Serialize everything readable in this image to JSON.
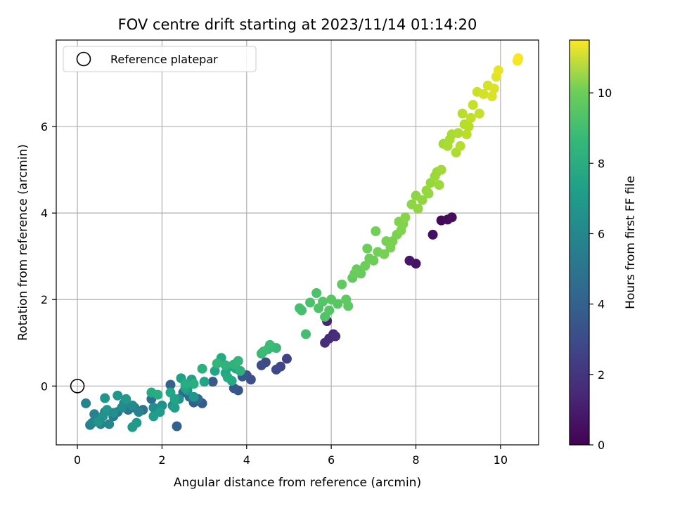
{
  "chart_data": {
    "type": "scatter",
    "title": "FOV centre drift starting at 2023/11/14 01:14:20",
    "xlabel": "Angular distance from reference (arcmin)",
    "ylabel": "Rotation from reference (arcmin)",
    "colorbar_label": "Hours from first FF file",
    "xlim": [
      -0.5,
      10.9
    ],
    "ylim": [
      -1.36,
      8.0
    ],
    "clim": [
      0,
      11.5
    ],
    "xticks": [
      "0",
      "2",
      "4",
      "6",
      "8",
      "10"
    ],
    "yticks": [
      "0",
      "2",
      "4",
      "6"
    ],
    "cticks": [
      "0",
      "2",
      "4",
      "6",
      "8",
      "10"
    ],
    "grid": true,
    "legend": {
      "placement": "top-left",
      "entries": [
        "Reference platepar"
      ]
    },
    "colormap": "viridis",
    "reference_point": {
      "x": 0,
      "y": 0
    },
    "points": [
      {
        "x": 8.6,
        "y": 3.83,
        "t": 0.2
      },
      {
        "x": 8.75,
        "y": 3.85,
        "t": 0.3
      },
      {
        "x": 8.85,
        "y": 3.9,
        "t": 0.4
      },
      {
        "x": 8.4,
        "y": 3.5,
        "t": 0.5
      },
      {
        "x": 8.0,
        "y": 2.83,
        "t": 0.6
      },
      {
        "x": 7.85,
        "y": 2.9,
        "t": 0.7
      },
      {
        "x": 5.9,
        "y": 1.5,
        "t": 1.2
      },
      {
        "x": 6.05,
        "y": 1.2,
        "t": 1.3
      },
      {
        "x": 5.95,
        "y": 1.1,
        "t": 1.4
      },
      {
        "x": 5.85,
        "y": 1.0,
        "t": 1.5
      },
      {
        "x": 6.1,
        "y": 1.15,
        "t": 1.5
      },
      {
        "x": 4.95,
        "y": 0.63,
        "t": 2.2
      },
      {
        "x": 4.8,
        "y": 0.45,
        "t": 2.4
      },
      {
        "x": 4.7,
        "y": 0.38,
        "t": 2.5
      },
      {
        "x": 4.45,
        "y": 0.55,
        "t": 2.6
      },
      {
        "x": 4.35,
        "y": 0.48,
        "t": 2.7
      },
      {
        "x": 4.1,
        "y": 0.15,
        "t": 2.8
      },
      {
        "x": 4.0,
        "y": 0.25,
        "t": 2.9
      },
      {
        "x": 3.8,
        "y": -0.1,
        "t": 3.0
      },
      {
        "x": 3.7,
        "y": -0.05,
        "t": 3.1
      },
      {
        "x": 3.9,
        "y": 0.22,
        "t": 3.1
      },
      {
        "x": 3.2,
        "y": 0.1,
        "t": 3.2
      },
      {
        "x": 2.95,
        "y": -0.4,
        "t": 3.3
      },
      {
        "x": 2.75,
        "y": -0.38,
        "t": 3.4
      },
      {
        "x": 2.35,
        "y": -0.93,
        "t": 3.5
      },
      {
        "x": 2.2,
        "y": 0.03,
        "t": 3.6
      },
      {
        "x": 2.5,
        "y": -0.15,
        "t": 3.8
      },
      {
        "x": 2.65,
        "y": -0.25,
        "t": 4.0
      },
      {
        "x": 2.85,
        "y": -0.3,
        "t": 4.1
      },
      {
        "x": 1.75,
        "y": -0.3,
        "t": 4.2
      },
      {
        "x": 1.55,
        "y": -0.55,
        "t": 4.3
      },
      {
        "x": 1.35,
        "y": -0.5,
        "t": 4.4
      },
      {
        "x": 1.2,
        "y": -0.55,
        "t": 4.5
      },
      {
        "x": 0.95,
        "y": -0.6,
        "t": 4.6
      },
      {
        "x": 0.85,
        "y": -0.7,
        "t": 4.7
      },
      {
        "x": 0.65,
        "y": -0.6,
        "t": 4.8
      },
      {
        "x": 0.45,
        "y": -0.78,
        "t": 4.8
      },
      {
        "x": 0.3,
        "y": -0.9,
        "t": 4.9
      },
      {
        "x": 0.4,
        "y": -0.65,
        "t": 5.0
      },
      {
        "x": 0.55,
        "y": -0.88,
        "t": 5.0
      },
      {
        "x": 0.2,
        "y": -0.4,
        "t": 5.1
      },
      {
        "x": 0.35,
        "y": -0.85,
        "t": 5.2
      },
      {
        "x": 0.75,
        "y": -0.88,
        "t": 5.3
      },
      {
        "x": 1.1,
        "y": -0.4,
        "t": 5.4
      },
      {
        "x": 1.3,
        "y": -0.45,
        "t": 5.5
      },
      {
        "x": 1.05,
        "y": -0.5,
        "t": 5.5
      },
      {
        "x": 1.8,
        "y": -0.5,
        "t": 5.6
      },
      {
        "x": 2.0,
        "y": -0.45,
        "t": 5.7
      },
      {
        "x": 2.25,
        "y": -0.45,
        "t": 5.7
      },
      {
        "x": 2.4,
        "y": -0.3,
        "t": 5.8
      },
      {
        "x": 2.6,
        "y": -0.1,
        "t": 5.9
      },
      {
        "x": 2.75,
        "y": -0.25,
        "t": 5.9
      },
      {
        "x": 0.65,
        "y": -0.28,
        "t": 6.0
      },
      {
        "x": 0.95,
        "y": -0.22,
        "t": 6.0
      },
      {
        "x": 1.15,
        "y": -0.3,
        "t": 6.1
      },
      {
        "x": 0.7,
        "y": -0.55,
        "t": 6.1
      },
      {
        "x": 1.4,
        "y": -0.85,
        "t": 6.2
      },
      {
        "x": 1.3,
        "y": -0.95,
        "t": 6.2
      },
      {
        "x": 1.8,
        "y": -0.7,
        "t": 6.3
      },
      {
        "x": 1.95,
        "y": -0.6,
        "t": 6.3
      },
      {
        "x": 2.3,
        "y": -0.5,
        "t": 6.4
      },
      {
        "x": 2.45,
        "y": 0.18,
        "t": 6.5
      },
      {
        "x": 2.7,
        "y": 0.15,
        "t": 6.5
      },
      {
        "x": 2.55,
        "y": -0.05,
        "t": 6.6
      },
      {
        "x": 3.0,
        "y": 0.1,
        "t": 6.7
      },
      {
        "x": 3.25,
        "y": 0.35,
        "t": 6.8
      },
      {
        "x": 3.5,
        "y": 0.3,
        "t": 6.8
      },
      {
        "x": 3.6,
        "y": 0.45,
        "t": 6.9
      },
      {
        "x": 3.75,
        "y": 0.4,
        "t": 6.9
      },
      {
        "x": 3.4,
        "y": 0.65,
        "t": 7.0
      },
      {
        "x": 3.55,
        "y": 0.2,
        "t": 7.0
      },
      {
        "x": 1.75,
        "y": -0.15,
        "t": 7.0
      },
      {
        "x": 1.9,
        "y": -0.2,
        "t": 7.1
      },
      {
        "x": 2.55,
        "y": 0.05,
        "t": 7.1
      },
      {
        "x": 2.75,
        "y": 0.05,
        "t": 7.2
      },
      {
        "x": 2.95,
        "y": 0.4,
        "t": 7.3
      },
      {
        "x": 3.85,
        "y": 0.35,
        "t": 7.3
      },
      {
        "x": 3.7,
        "y": 0.5,
        "t": 7.4
      },
      {
        "x": 3.8,
        "y": 0.58,
        "t": 7.5
      },
      {
        "x": 4.35,
        "y": 0.75,
        "t": 7.6
      },
      {
        "x": 4.5,
        "y": 0.85,
        "t": 7.6
      },
      {
        "x": 4.6,
        "y": 0.9,
        "t": 7.7
      },
      {
        "x": 4.7,
        "y": 0.88,
        "t": 7.7
      },
      {
        "x": 4.55,
        "y": 0.95,
        "t": 7.8
      },
      {
        "x": 4.4,
        "y": 0.8,
        "t": 7.8
      },
      {
        "x": 5.4,
        "y": 1.2,
        "t": 8.0
      },
      {
        "x": 5.25,
        "y": 1.8,
        "t": 8.1
      },
      {
        "x": 5.3,
        "y": 1.75,
        "t": 8.1
      },
      {
        "x": 5.5,
        "y": 1.93,
        "t": 8.2
      },
      {
        "x": 5.65,
        "y": 2.15,
        "t": 8.2
      },
      {
        "x": 5.7,
        "y": 1.8,
        "t": 8.3
      },
      {
        "x": 5.85,
        "y": 1.6,
        "t": 8.3
      },
      {
        "x": 5.8,
        "y": 1.95,
        "t": 8.4
      },
      {
        "x": 5.95,
        "y": 1.75,
        "t": 8.4
      },
      {
        "x": 6.0,
        "y": 2.0,
        "t": 8.5
      },
      {
        "x": 6.15,
        "y": 1.9,
        "t": 8.5
      },
      {
        "x": 6.35,
        "y": 2.0,
        "t": 8.6
      },
      {
        "x": 6.4,
        "y": 1.85,
        "t": 8.6
      },
      {
        "x": 6.25,
        "y": 2.35,
        "t": 8.7
      },
      {
        "x": 6.5,
        "y": 2.5,
        "t": 8.7
      },
      {
        "x": 6.6,
        "y": 2.7,
        "t": 8.8
      },
      {
        "x": 6.7,
        "y": 2.6,
        "t": 8.8
      },
      {
        "x": 6.85,
        "y": 3.18,
        "t": 8.9
      },
      {
        "x": 6.9,
        "y": 2.95,
        "t": 8.9
      },
      {
        "x": 7.05,
        "y": 3.58,
        "t": 9.0
      },
      {
        "x": 7.1,
        "y": 3.1,
        "t": 9.0
      },
      {
        "x": 7.25,
        "y": 3.05,
        "t": 9.1
      },
      {
        "x": 7.3,
        "y": 3.35,
        "t": 9.1
      },
      {
        "x": 7.45,
        "y": 3.35,
        "t": 9.2
      },
      {
        "x": 7.55,
        "y": 3.5,
        "t": 9.2
      },
      {
        "x": 7.6,
        "y": 3.8,
        "t": 9.3
      },
      {
        "x": 7.7,
        "y": 3.75,
        "t": 9.3
      },
      {
        "x": 7.75,
        "y": 3.9,
        "t": 9.4
      },
      {
        "x": 7.9,
        "y": 4.2,
        "t": 9.5
      },
      {
        "x": 8.0,
        "y": 4.4,
        "t": 9.5
      },
      {
        "x": 8.05,
        "y": 4.1,
        "t": 9.6
      },
      {
        "x": 8.15,
        "y": 4.3,
        "t": 9.6
      },
      {
        "x": 8.25,
        "y": 4.52,
        "t": 9.7
      },
      {
        "x": 8.35,
        "y": 4.7,
        "t": 9.7
      },
      {
        "x": 8.5,
        "y": 4.95,
        "t": 9.8
      },
      {
        "x": 8.55,
        "y": 4.65,
        "t": 9.8
      },
      {
        "x": 8.6,
        "y": 5.0,
        "t": 9.9
      },
      {
        "x": 8.65,
        "y": 5.6,
        "t": 9.9
      },
      {
        "x": 8.75,
        "y": 5.55,
        "t": 10.0
      },
      {
        "x": 8.85,
        "y": 5.82,
        "t": 10.0
      },
      {
        "x": 8.95,
        "y": 5.4,
        "t": 10.1
      },
      {
        "x": 9.0,
        "y": 5.85,
        "t": 10.1
      },
      {
        "x": 9.05,
        "y": 5.55,
        "t": 10.2
      },
      {
        "x": 9.15,
        "y": 6.05,
        "t": 10.2
      },
      {
        "x": 9.1,
        "y": 6.3,
        "t": 10.3
      },
      {
        "x": 9.2,
        "y": 5.82,
        "t": 10.3
      },
      {
        "x": 9.3,
        "y": 6.2,
        "t": 10.4
      },
      {
        "x": 9.35,
        "y": 6.5,
        "t": 10.5
      },
      {
        "x": 9.45,
        "y": 6.8,
        "t": 10.6
      },
      {
        "x": 9.6,
        "y": 6.75,
        "t": 10.7
      },
      {
        "x": 9.7,
        "y": 6.95,
        "t": 10.8
      },
      {
        "x": 9.85,
        "y": 6.88,
        "t": 10.9
      },
      {
        "x": 9.9,
        "y": 7.15,
        "t": 11.0
      },
      {
        "x": 9.95,
        "y": 7.3,
        "t": 11.1
      },
      {
        "x": 10.4,
        "y": 7.52,
        "t": 11.3
      },
      {
        "x": 10.42,
        "y": 7.58,
        "t": 11.4
      },
      {
        "x": 3.3,
        "y": 0.52,
        "t": 7.5
      },
      {
        "x": 3.5,
        "y": 0.48,
        "t": 7.4
      },
      {
        "x": 3.65,
        "y": 0.12,
        "t": 7.0
      },
      {
        "x": 2.2,
        "y": -0.15,
        "t": 6.8
      },
      {
        "x": 2.3,
        "y": -0.3,
        "t": 6.6
      },
      {
        "x": 0.5,
        "y": -0.82,
        "t": 5.9
      },
      {
        "x": 0.6,
        "y": -0.7,
        "t": 5.8
      },
      {
        "x": 0.85,
        "y": -0.62,
        "t": 5.7
      },
      {
        "x": 1.45,
        "y": -0.6,
        "t": 5.0
      },
      {
        "x": 6.55,
        "y": 2.6,
        "t": 8.85
      },
      {
        "x": 6.8,
        "y": 2.78,
        "t": 8.9
      },
      {
        "x": 7.0,
        "y": 2.9,
        "t": 8.95
      },
      {
        "x": 7.4,
        "y": 3.2,
        "t": 9.15
      },
      {
        "x": 7.65,
        "y": 3.6,
        "t": 9.3
      },
      {
        "x": 8.3,
        "y": 4.45,
        "t": 9.65
      },
      {
        "x": 8.45,
        "y": 4.85,
        "t": 9.78
      },
      {
        "x": 8.8,
        "y": 5.7,
        "t": 10.0
      },
      {
        "x": 9.25,
        "y": 6.0,
        "t": 10.3
      },
      {
        "x": 9.5,
        "y": 6.3,
        "t": 10.5
      },
      {
        "x": 9.8,
        "y": 6.7,
        "t": 10.85
      }
    ]
  }
}
